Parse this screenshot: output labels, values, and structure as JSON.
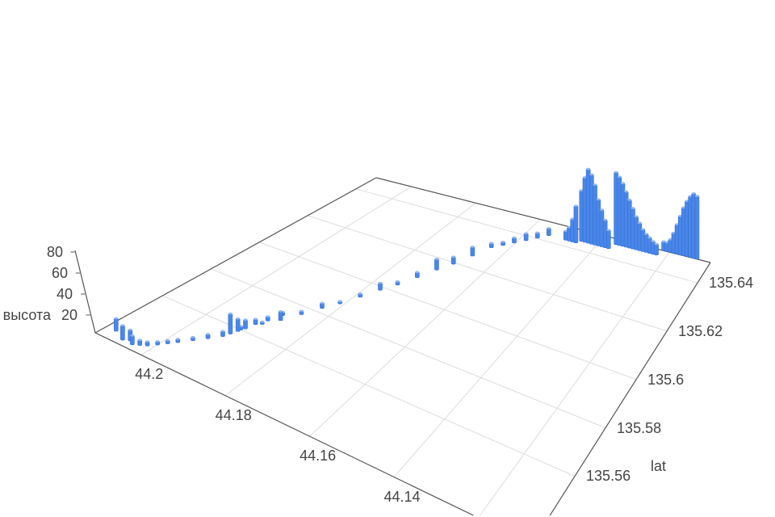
{
  "chart_data": {
    "type": "3d-bar",
    "x_axis": {
      "title": "",
      "ticks": [
        "44.2",
        "44.18",
        "44.16",
        "44.14"
      ],
      "tick_values": [
        44.2,
        44.18,
        44.16,
        44.14
      ],
      "range": [
        44.21,
        44.12
      ]
    },
    "y_axis": {
      "title": "lat",
      "ticks": [
        "135.56",
        "135.58",
        "135.6",
        "135.62",
        "135.64"
      ],
      "tick_values": [
        135.56,
        135.58,
        135.6,
        135.62,
        135.64
      ],
      "range": [
        135.55,
        135.65
      ]
    },
    "z_axis": {
      "title": "высота",
      "ticks": [
        "20",
        "40",
        "60",
        "80"
      ],
      "tick_values": [
        20,
        40,
        60,
        80
      ],
      "range": [
        0,
        80
      ]
    },
    "grid": true,
    "bar_color": "#4a86e8",
    "points": [
      [
        44.208,
        135.554,
        14
      ],
      [
        44.2055,
        135.552,
        16
      ],
      [
        44.2045,
        135.553,
        12
      ],
      [
        44.2035,
        135.552,
        10
      ],
      [
        44.2025,
        135.553,
        6
      ],
      [
        44.2015,
        135.554,
        5
      ],
      [
        44.2005,
        135.556,
        4
      ],
      [
        44.1995,
        135.558,
        4
      ],
      [
        44.1985,
        135.56,
        4
      ],
      [
        44.197,
        135.563,
        4
      ],
      [
        44.1955,
        135.566,
        5
      ],
      [
        44.194,
        135.569,
        6
      ],
      [
        44.1935,
        135.571,
        22
      ],
      [
        44.193,
        135.573,
        14
      ],
      [
        44.1925,
        135.575,
        10
      ],
      [
        44.192,
        135.578,
        6
      ],
      [
        44.191,
        135.581,
        5
      ],
      [
        44.19,
        135.585,
        4
      ],
      [
        44.1929,
        135.574,
        4
      ],
      [
        44.1911,
        135.579,
        3
      ],
      [
        44.1893,
        135.583,
        10
      ],
      [
        44.1875,
        135.588,
        4
      ],
      [
        44.1857,
        135.593,
        6
      ],
      [
        44.1839,
        135.597,
        3
      ],
      [
        44.1821,
        135.602,
        4
      ],
      [
        44.1803,
        135.607,
        8
      ],
      [
        44.1785,
        135.611,
        4
      ],
      [
        44.1767,
        135.616,
        6
      ],
      [
        44.1749,
        135.621,
        12
      ],
      [
        44.1731,
        135.625,
        8
      ],
      [
        44.1713,
        135.63,
        10
      ],
      [
        44.1695,
        135.635,
        5
      ],
      [
        44.1677,
        135.637,
        4
      ],
      [
        44.166,
        135.639,
        6
      ],
      [
        44.1641,
        135.641,
        8
      ],
      [
        44.1623,
        135.643,
        6
      ],
      [
        44.1605,
        135.645,
        8
      ],
      [
        44.156,
        135.645,
        10
      ],
      [
        44.1551,
        135.645,
        15
      ],
      [
        44.1542,
        135.645,
        25
      ],
      [
        44.1533,
        135.645,
        40
      ],
      [
        44.1524,
        135.646,
        55
      ],
      [
        44.1515,
        135.646,
        70
      ],
      [
        44.1506,
        135.646,
        80
      ],
      [
        44.1497,
        135.646,
        75
      ],
      [
        44.1488,
        135.646,
        65
      ],
      [
        44.1479,
        135.646,
        50
      ],
      [
        44.147,
        135.646,
        40
      ],
      [
        44.1461,
        135.646,
        30
      ],
      [
        44.1452,
        135.646,
        20
      ],
      [
        44.1443,
        135.648,
        78
      ],
      [
        44.1434,
        135.648,
        74
      ],
      [
        44.1425,
        135.648,
        68
      ],
      [
        44.1416,
        135.648,
        60
      ],
      [
        44.1407,
        135.648,
        52
      ],
      [
        44.1398,
        135.648,
        44
      ],
      [
        44.1389,
        135.648,
        36
      ],
      [
        44.138,
        135.648,
        30
      ],
      [
        44.1371,
        135.648,
        24
      ],
      [
        44.1362,
        135.648,
        20
      ],
      [
        44.1353,
        135.648,
        17
      ],
      [
        44.1344,
        135.648,
        14
      ],
      [
        44.1335,
        135.648,
        12
      ],
      [
        44.1326,
        135.65,
        10
      ],
      [
        44.1317,
        135.65,
        10
      ],
      [
        44.1308,
        135.65,
        14
      ],
      [
        44.1299,
        135.65,
        22
      ],
      [
        44.129,
        135.65,
        32
      ],
      [
        44.1281,
        135.65,
        42
      ],
      [
        44.1272,
        135.65,
        52
      ],
      [
        44.1263,
        135.65,
        60
      ],
      [
        44.1254,
        135.65,
        66
      ],
      [
        44.1245,
        135.65,
        70
      ],
      [
        44.1236,
        135.65,
        68
      ]
    ]
  }
}
